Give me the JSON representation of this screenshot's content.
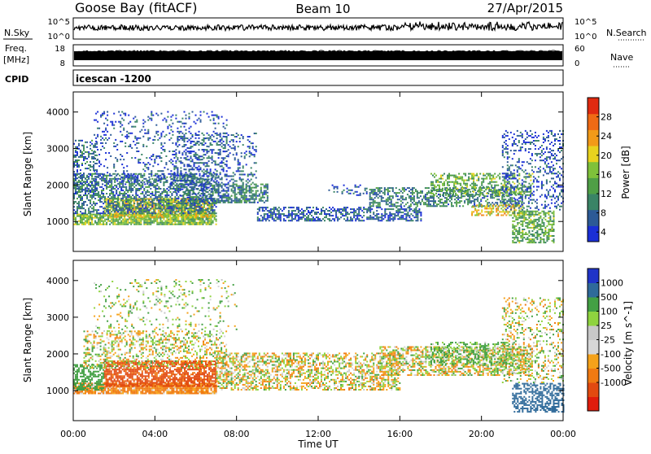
{
  "header": {
    "station": "Goose Bay (fitACF)",
    "beam": "Beam 10",
    "date": "27/Apr/2015"
  },
  "noise_panel": {
    "label": "N.Sky",
    "ticks_left": [
      "10^5",
      "10^0"
    ],
    "ticks_right": [
      "10^5",
      "10^0"
    ],
    "right_label": "N.Search"
  },
  "freq_panel": {
    "label_line1": "Freq.",
    "label_line2": "[MHz]",
    "ticks_left": [
      "18",
      "8"
    ],
    "ticks_right": [
      "60",
      "0"
    ],
    "right_label": "Nave"
  },
  "cpid_panel": {
    "label": "CPID",
    "value": "icescan -1200"
  },
  "colors": {
    "power": [
      "#1a2fd6",
      "#2c5a96",
      "#3a8466",
      "#4f9f46",
      "#7fc13a",
      "#e8d21e",
      "#f29a18",
      "#ef6a14",
      "#e02a10"
    ],
    "velocity": [
      "#2034c8",
      "#2f6a9a",
      "#43a044",
      "#8fd33f",
      "#c8c8c8",
      "#d7d7d7",
      "#f5a21a",
      "#f07a12",
      "#e24a10",
      "#e01c0c"
    ]
  },
  "chart_data": [
    {
      "type": "heatmap",
      "title": "",
      "quantity": "Power",
      "xlabel": "",
      "ylabel": "Slant Range [km]",
      "x_tick_labels": [
        "00:00",
        "04:00",
        "08:00",
        "12:00",
        "16:00",
        "20:00",
        "00:00"
      ],
      "xlim": [
        0,
        24
      ],
      "y_ticks": [
        1000,
        2000,
        3000,
        4000
      ],
      "ylim": [
        180,
        4550
      ],
      "colorbar_label": "Power [dB]",
      "colorbar_ticks": [
        4,
        8,
        12,
        16,
        20,
        24,
        28
      ],
      "clim": [
        2,
        32
      ],
      "regions": [
        {
          "t": [
            0.0,
            7.0
          ],
          "range": [
            900,
            1200
          ],
          "value": 16,
          "density": 0.85
        },
        {
          "t": [
            1.5,
            6.8
          ],
          "range": [
            1100,
            1600
          ],
          "value": 20,
          "density": 0.75
        },
        {
          "t": [
            0.0,
            7.0
          ],
          "range": [
            1200,
            2300
          ],
          "value": 9,
          "density": 0.55
        },
        {
          "t": [
            0.0,
            1.2
          ],
          "range": [
            1800,
            3200
          ],
          "value": 8,
          "density": 0.35
        },
        {
          "t": [
            1.0,
            7.5
          ],
          "range": [
            2000,
            4000
          ],
          "value": 6,
          "density": 0.15
        },
        {
          "t": [
            5.0,
            9.0
          ],
          "range": [
            1500,
            3400
          ],
          "value": 7,
          "density": 0.25
        },
        {
          "t": [
            7.0,
            9.5
          ],
          "range": [
            1500,
            2000
          ],
          "value": 10,
          "density": 0.55
        },
        {
          "t": [
            9.0,
            17.0
          ],
          "range": [
            1000,
            1400
          ],
          "value": 7,
          "density": 0.55
        },
        {
          "t": [
            12.5,
            14.5
          ],
          "range": [
            1700,
            2000
          ],
          "value": 6,
          "density": 0.25
        },
        {
          "t": [
            14.5,
            22.0
          ],
          "range": [
            1400,
            1900
          ],
          "value": 10,
          "density": 0.5
        },
        {
          "t": [
            17.5,
            22.5
          ],
          "range": [
            1700,
            2300
          ],
          "value": 15,
          "density": 0.45
        },
        {
          "t": [
            19.5,
            22.0
          ],
          "range": [
            1150,
            1450
          ],
          "value": 21,
          "density": 0.5
        },
        {
          "t": [
            21.5,
            23.5
          ],
          "range": [
            400,
            1300
          ],
          "value": 14,
          "density": 0.6
        },
        {
          "t": [
            21.0,
            24.0
          ],
          "range": [
            1300,
            3500
          ],
          "value": 6,
          "density": 0.25
        }
      ]
    },
    {
      "type": "heatmap",
      "title": "",
      "quantity": "Velocity",
      "xlabel": "Time UT",
      "ylabel": "Slant Range [km]",
      "x_tick_labels": [
        "00:00",
        "04:00",
        "08:00",
        "12:00",
        "16:00",
        "20:00",
        "00:00"
      ],
      "xlim": [
        0,
        24
      ],
      "y_ticks": [
        1000,
        2000,
        3000,
        4000
      ],
      "ylim": [
        180,
        4550
      ],
      "colorbar_label": "Velocity [m s^-1]",
      "colorbar_ticks": [
        "1000",
        "500",
        "100",
        "25",
        "-25",
        "-100",
        "-500",
        "-1000"
      ],
      "regions": [
        {
          "t": [
            0.0,
            7.0
          ],
          "range": [
            900,
            1200
          ],
          "value": -150,
          "density": 0.85
        },
        {
          "t": [
            1.5,
            7.0
          ],
          "range": [
            1100,
            1800
          ],
          "value": -600,
          "density": 0.75
        },
        {
          "t": [
            0.0,
            1.5
          ],
          "range": [
            1000,
            1700
          ],
          "value": 300,
          "density": 0.6
        },
        {
          "t": [
            0.5,
            7.5
          ],
          "range": [
            1600,
            2600
          ],
          "value": 10,
          "density": 0.35
        },
        {
          "t": [
            1.0,
            8.0
          ],
          "range": [
            2600,
            4000
          ],
          "value": 60,
          "density": 0.12
        },
        {
          "t": [
            7.0,
            16.0
          ],
          "range": [
            1000,
            2000
          ],
          "value": 0,
          "density": 0.5
        },
        {
          "t": [
            15.0,
            22.5
          ],
          "range": [
            1400,
            2200
          ],
          "value": 5,
          "density": 0.55
        },
        {
          "t": [
            17.5,
            21.5
          ],
          "range": [
            1700,
            2300
          ],
          "value": 150,
          "density": 0.4
        },
        {
          "t": [
            21.5,
            24.0
          ],
          "range": [
            400,
            1200
          ],
          "value": 700,
          "density": 0.55
        },
        {
          "t": [
            21.0,
            24.0
          ],
          "range": [
            1200,
            3500
          ],
          "value": 20,
          "density": 0.25
        }
      ]
    }
  ]
}
